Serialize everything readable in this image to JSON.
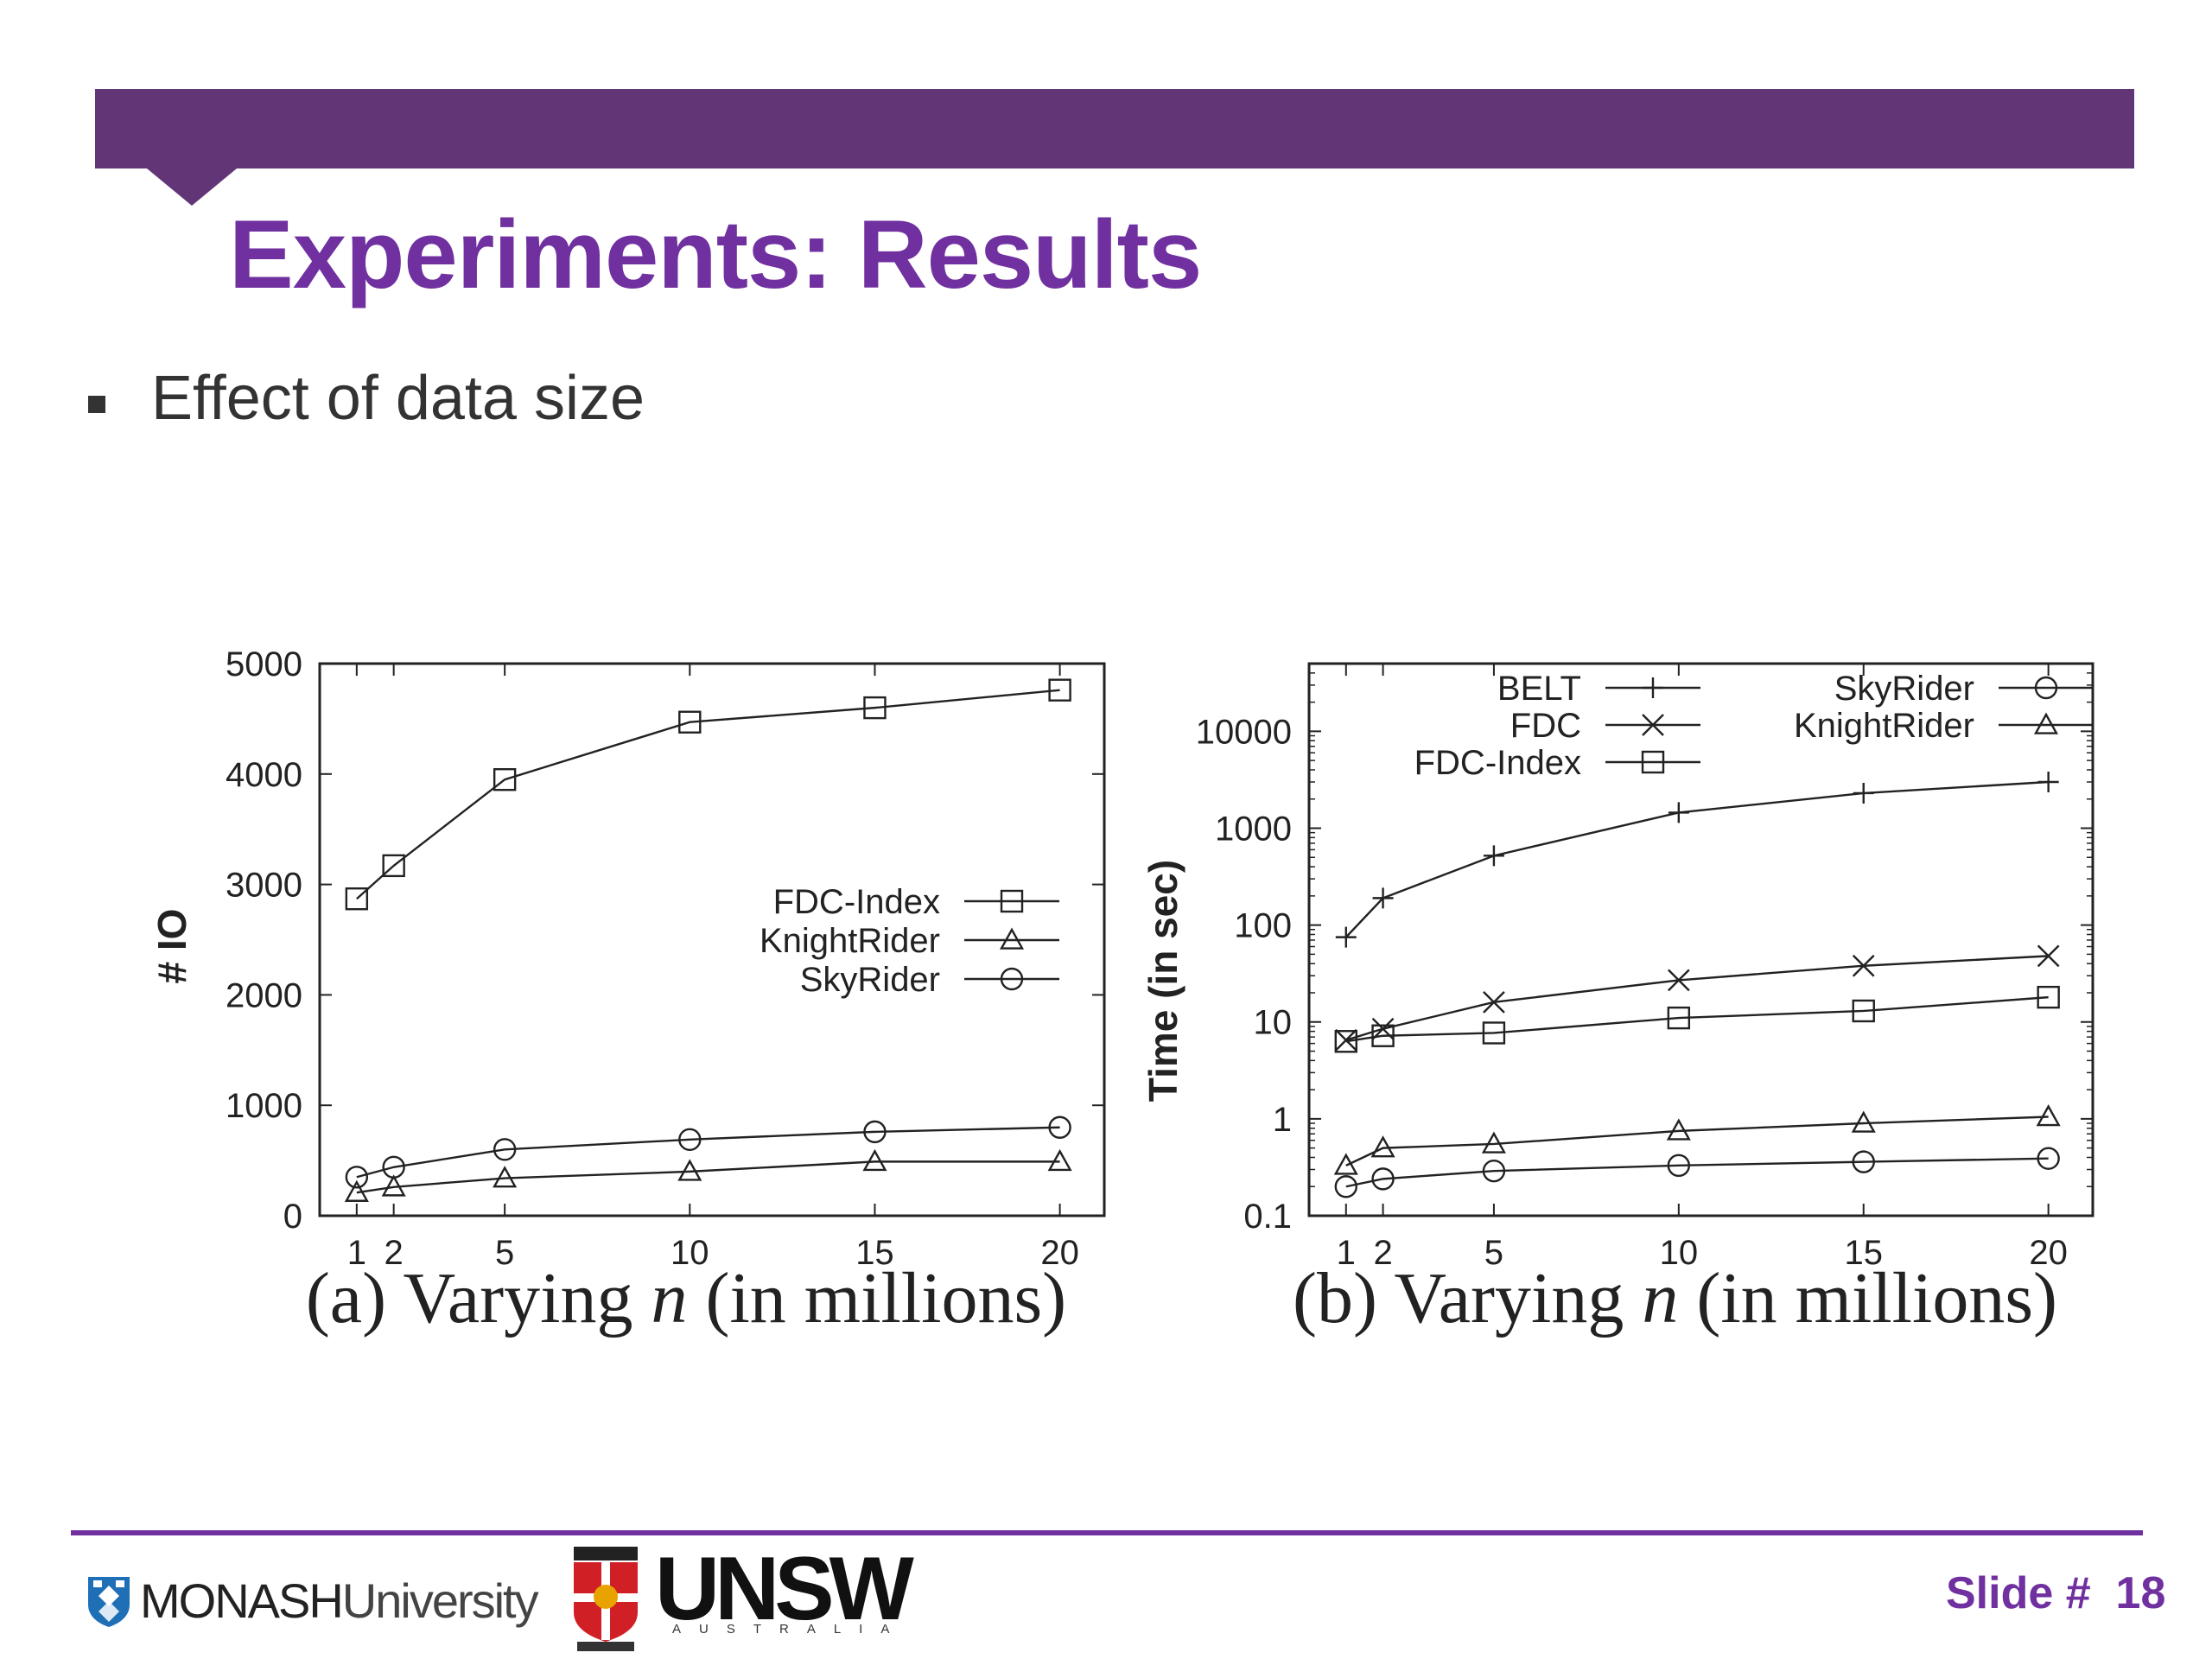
{
  "slide": {
    "title": "Experiments: Results",
    "bullet": "Effect of data size",
    "slide_label": "Slide #",
    "slide_number": "18",
    "colors": {
      "brand_purple": "#623577",
      "title_purple": "#7030a0"
    }
  },
  "footer": {
    "monash_bold": "MONASH",
    "monash_light": "University",
    "unsw_name": "UNSW",
    "unsw_sub": "AUSTRALIA"
  },
  "chart_data": [
    {
      "type": "line",
      "x": [
        1,
        2,
        5,
        10,
        15,
        20
      ],
      "xticks": [
        "1",
        "2",
        "5",
        "10",
        "15",
        "20"
      ],
      "ylabel": "# IO",
      "caption_prefix": "(a) Varying",
      "caption_var": "n",
      "caption_suffix": "(in millions)",
      "yscale": "linear",
      "ylim": [
        0,
        5000
      ],
      "yticks": [
        "0",
        "1000",
        "2000",
        "3000",
        "4000",
        "5000"
      ],
      "legend_position": "middle-right",
      "series": [
        {
          "name": "SkyRider",
          "marker": "circle",
          "values": [
            350,
            440,
            600,
            690,
            760,
            800
          ]
        },
        {
          "name": "KnightRider",
          "marker": "triangle",
          "values": [
            210,
            260,
            340,
            400,
            490,
            490
          ]
        },
        {
          "name": "FDC-Index",
          "marker": "square",
          "values": [
            2870,
            3170,
            3950,
            4470,
            4600,
            4760
          ]
        }
      ]
    },
    {
      "type": "line",
      "x": [
        1,
        2,
        5,
        10,
        15,
        20
      ],
      "xticks": [
        "1",
        "2",
        "5",
        "10",
        "15",
        "20"
      ],
      "ylabel": "Time (in sec)",
      "caption_prefix": "(b) Varying",
      "caption_var": "n",
      "caption_suffix": "(in millions)",
      "yscale": "log",
      "ylim": [
        0.1,
        50000
      ],
      "yticks": [
        "0.1",
        "1",
        "10",
        "100",
        "1000",
        "10000"
      ],
      "legend_position": "top",
      "series": [
        {
          "name": "BELT",
          "marker": "plus",
          "values": [
            75,
            190,
            520,
            1450,
            2300,
            3000
          ]
        },
        {
          "name": "FDC",
          "marker": "x",
          "values": [
            6.5,
            8.5,
            16,
            27,
            38,
            48
          ]
        },
        {
          "name": "FDC-Index",
          "marker": "square",
          "values": [
            6.3,
            7.2,
            7.7,
            11,
            13,
            18
          ]
        },
        {
          "name": "SkyRider",
          "marker": "circle",
          "values": [
            0.2,
            0.24,
            0.29,
            0.33,
            0.36,
            0.39
          ]
        },
        {
          "name": "KnightRider",
          "marker": "triangle",
          "values": [
            0.33,
            0.5,
            0.55,
            0.75,
            0.9,
            1.05
          ]
        }
      ]
    }
  ]
}
